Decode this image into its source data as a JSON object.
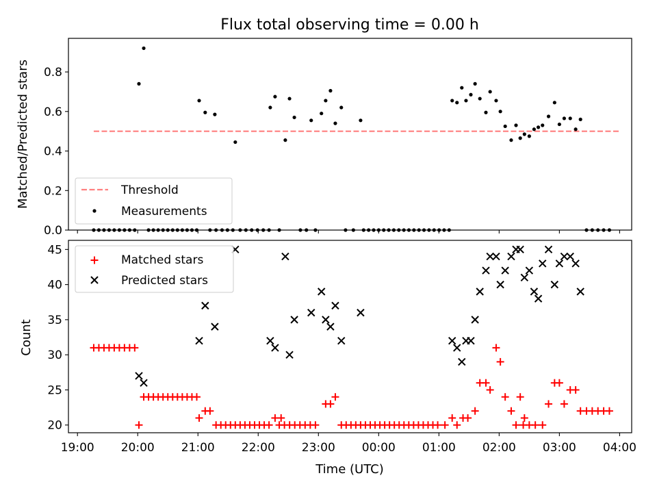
{
  "title": "Flux total observing time = 0.00 h",
  "xlabel": "Time (UTC)",
  "xticks": [
    {
      "t": 0,
      "label": "19:00"
    },
    {
      "t": 1,
      "label": "20:00"
    },
    {
      "t": 2,
      "label": "21:00"
    },
    {
      "t": 3,
      "label": "22:00"
    },
    {
      "t": 4,
      "label": "23:00"
    },
    {
      "t": 5,
      "label": "00:00"
    },
    {
      "t": 6,
      "label": "01:00"
    },
    {
      "t": 7,
      "label": "02:00"
    },
    {
      "t": 8,
      "label": "03:00"
    },
    {
      "t": 9,
      "label": "04:00"
    }
  ],
  "chart_data": [
    {
      "type": "scatter",
      "ylabel": "Matched/Predicted stars",
      "ylim": [
        0,
        0.97
      ],
      "yticks": [
        0.0,
        0.2,
        0.4,
        0.6,
        0.8
      ],
      "ytick_labels": [
        "0.0",
        "0.2",
        "0.4",
        "0.6",
        "0.8"
      ],
      "legend_position": "lower-left",
      "threshold": {
        "name": "Threshold",
        "value": 0.5,
        "x_range": [
          0.27,
          9.0
        ],
        "color": "#ff7f7f"
      },
      "series": [
        {
          "name": "Measurements",
          "color": "#000000",
          "zero_runs": [
            [
              0.27,
              0.95,
              9
            ],
            [
              1.18,
              1.98,
              11
            ],
            [
              2.2,
              2.3,
              2
            ],
            [
              2.4,
              2.58,
              3
            ],
            [
              2.7,
              3.18,
              6
            ],
            [
              3.35,
              3.35,
              1
            ],
            [
              3.7,
              3.8,
              2
            ],
            [
              3.95,
              3.95,
              1
            ],
            [
              4.45,
              4.58,
              2
            ],
            [
              4.75,
              6.17,
              18
            ],
            [
              8.45,
              8.83,
              5
            ]
          ],
          "points": [
            [
              1.02,
              0.74
            ],
            [
              1.1,
              0.92
            ],
            [
              2.02,
              0.655
            ],
            [
              2.12,
              0.595
            ],
            [
              2.28,
              0.585
            ],
            [
              2.62,
              0.445
            ],
            [
              3.2,
              0.62
            ],
            [
              3.28,
              0.675
            ],
            [
              3.45,
              0.455
            ],
            [
              3.52,
              0.665
            ],
            [
              3.6,
              0.57
            ],
            [
              3.88,
              0.555
            ],
            [
              4.05,
              0.59
            ],
            [
              4.12,
              0.655
            ],
            [
              4.2,
              0.705
            ],
            [
              4.28,
              0.54
            ],
            [
              4.38,
              0.62
            ],
            [
              4.7,
              0.555
            ],
            [
              6.22,
              0.655
            ],
            [
              6.3,
              0.645
            ],
            [
              6.38,
              0.72
            ],
            [
              6.45,
              0.655
            ],
            [
              6.53,
              0.685
            ],
            [
              6.6,
              0.74
            ],
            [
              6.68,
              0.665
            ],
            [
              6.78,
              0.595
            ],
            [
              6.85,
              0.7
            ],
            [
              6.95,
              0.655
            ],
            [
              7.02,
              0.6
            ],
            [
              7.1,
              0.525
            ],
            [
              7.2,
              0.455
            ],
            [
              7.28,
              0.53
            ],
            [
              7.35,
              0.465
            ],
            [
              7.42,
              0.485
            ],
            [
              7.5,
              0.475
            ],
            [
              7.58,
              0.51
            ],
            [
              7.65,
              0.52
            ],
            [
              7.72,
              0.53
            ],
            [
              7.82,
              0.575
            ],
            [
              7.92,
              0.645
            ],
            [
              8.0,
              0.535
            ],
            [
              8.08,
              0.565
            ],
            [
              8.18,
              0.565
            ],
            [
              8.27,
              0.51
            ],
            [
              8.35,
              0.56
            ]
          ]
        }
      ]
    },
    {
      "type": "scatter",
      "ylabel": "Count",
      "ylim": [
        18.9,
        46.3
      ],
      "yticks": [
        20,
        25,
        30,
        35,
        40,
        45
      ],
      "ytick_labels": [
        "20",
        "25",
        "30",
        "35",
        "40",
        "45"
      ],
      "legend_position": "upper-left",
      "series": [
        {
          "name": "Matched stars",
          "marker": "plus",
          "color": "#ff0000",
          "runs": [
            [
              0.27,
              0.95,
              9,
              31
            ],
            [
              1.1,
              1.98,
              12,
              24
            ],
            [
              2.3,
              3.18,
              12,
              20
            ],
            [
              3.35,
              3.95,
              8,
              20
            ],
            [
              4.38,
              5.98,
              21,
              20
            ],
            [
              7.4,
              7.6,
              3,
              20
            ],
            [
              8.45,
              8.83,
              5,
              22
            ]
          ],
          "points": [
            [
              1.02,
              20
            ],
            [
              2.02,
              21
            ],
            [
              2.12,
              22
            ],
            [
              2.2,
              22
            ],
            [
              3.28,
              21
            ],
            [
              3.38,
              21
            ],
            [
              4.12,
              23
            ],
            [
              4.2,
              23
            ],
            [
              4.28,
              24
            ],
            [
              6.1,
              20
            ],
            [
              6.22,
              21
            ],
            [
              6.3,
              20
            ],
            [
              6.4,
              21
            ],
            [
              6.48,
              21
            ],
            [
              6.6,
              22
            ],
            [
              6.68,
              26
            ],
            [
              6.78,
              26
            ],
            [
              6.85,
              25
            ],
            [
              6.95,
              31
            ],
            [
              7.02,
              29
            ],
            [
              7.1,
              24
            ],
            [
              7.2,
              22
            ],
            [
              7.28,
              20
            ],
            [
              7.35,
              24
            ],
            [
              7.42,
              21
            ],
            [
              7.72,
              20
            ],
            [
              7.82,
              23
            ],
            [
              7.92,
              26
            ],
            [
              8.0,
              26
            ],
            [
              8.08,
              23
            ],
            [
              8.18,
              25
            ],
            [
              8.27,
              25
            ],
            [
              8.35,
              22
            ]
          ]
        },
        {
          "name": "Predicted stars",
          "marker": "x",
          "color": "#000000",
          "points": [
            [
              1.02,
              27
            ],
            [
              1.1,
              26
            ],
            [
              2.02,
              32
            ],
            [
              2.12,
              37
            ],
            [
              2.28,
              34
            ],
            [
              2.62,
              45
            ],
            [
              3.2,
              32
            ],
            [
              3.28,
              31
            ],
            [
              3.45,
              44
            ],
            [
              3.52,
              30
            ],
            [
              3.6,
              35
            ],
            [
              3.88,
              36
            ],
            [
              4.05,
              39
            ],
            [
              4.12,
              35
            ],
            [
              4.2,
              34
            ],
            [
              4.28,
              37
            ],
            [
              4.38,
              32
            ],
            [
              4.7,
              36
            ],
            [
              6.22,
              32
            ],
            [
              6.3,
              31
            ],
            [
              6.38,
              29
            ],
            [
              6.45,
              32
            ],
            [
              6.53,
              32
            ],
            [
              6.6,
              35
            ],
            [
              6.68,
              39
            ],
            [
              6.78,
              42
            ],
            [
              6.85,
              44
            ],
            [
              6.95,
              44
            ],
            [
              7.02,
              40
            ],
            [
              7.1,
              42
            ],
            [
              7.2,
              44
            ],
            [
              7.28,
              45
            ],
            [
              7.35,
              45
            ],
            [
              7.42,
              41
            ],
            [
              7.5,
              42
            ],
            [
              7.58,
              39
            ],
            [
              7.65,
              38
            ],
            [
              7.72,
              43
            ],
            [
              7.82,
              45
            ],
            [
              7.92,
              40
            ],
            [
              8.0,
              43
            ],
            [
              8.08,
              44
            ],
            [
              8.18,
              44
            ],
            [
              8.27,
              43
            ],
            [
              8.35,
              39
            ]
          ]
        }
      ]
    }
  ]
}
